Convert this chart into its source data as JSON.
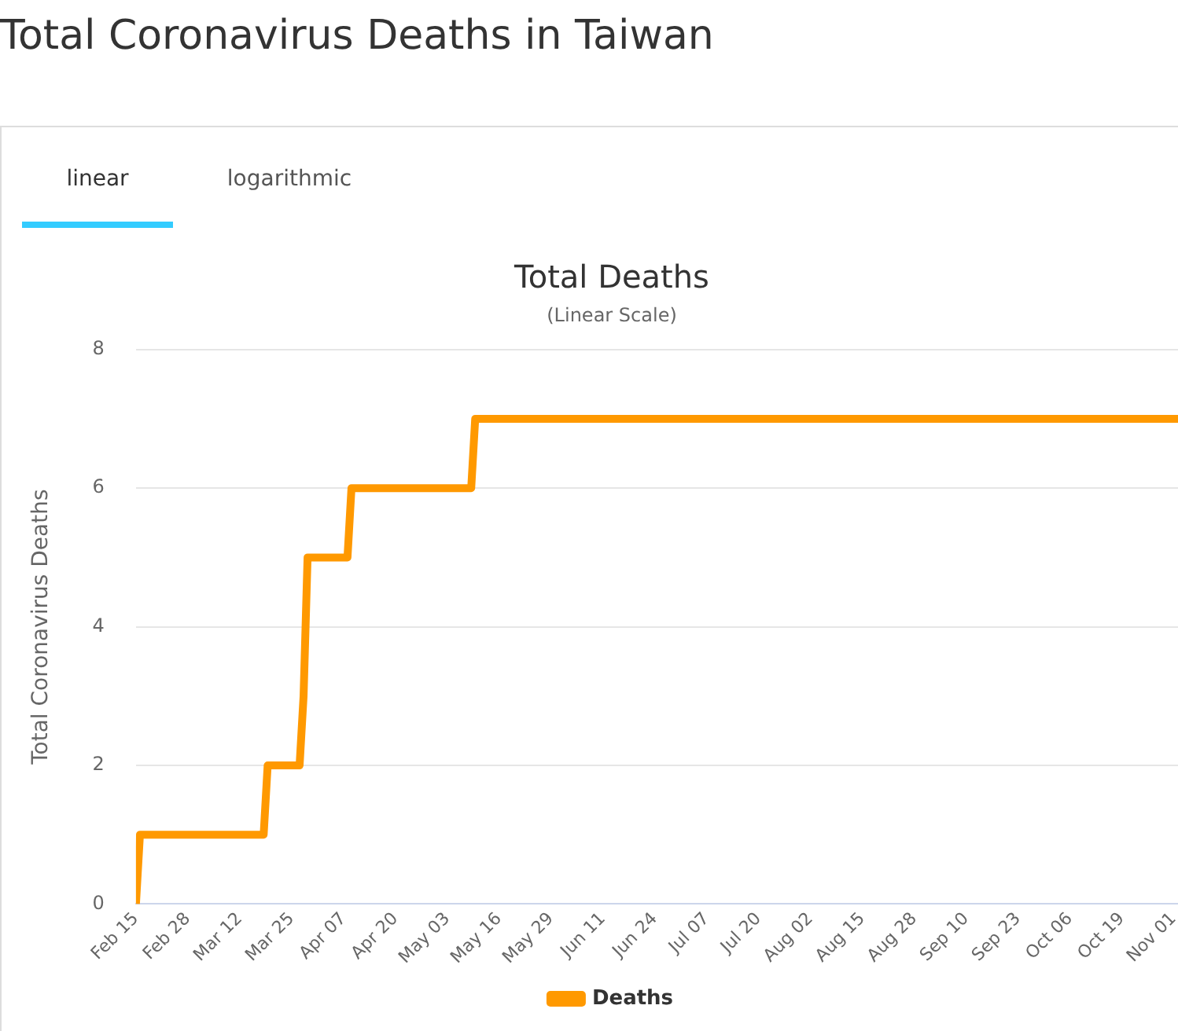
{
  "chart_data": {
    "type": "line",
    "title": "Total Deaths",
    "subtitle": "(Linear Scale)",
    "ylabel": "Total Coronavirus Deaths",
    "annotations": [
      "Total Coronavirus Deaths in Taiwan",
      "linear",
      "logarithmic"
    ],
    "x": [
      "--02-15",
      "--02-16",
      "--03-18",
      "--03-19",
      "--03-27",
      "--03-28",
      "--03-29",
      "--04-08",
      "--04-09",
      "--05-09",
      "--05-10",
      "--11-08"
    ],
    "series": [
      {
        "name": "Deaths",
        "color": "#ff9900",
        "values": [
          0,
          1,
          1,
          2,
          2,
          3,
          5,
          5,
          6,
          6,
          7,
          7
        ]
      }
    ],
    "xlim": [
      "--02-15",
      "--11-08"
    ],
    "xticks": [
      {
        "value": "--02-15",
        "label": "Feb 15"
      },
      {
        "value": "--02-28",
        "label": "Feb 28"
      },
      {
        "value": "--03-12",
        "label": "Mar 12"
      },
      {
        "value": "--03-25",
        "label": "Mar 25"
      },
      {
        "value": "--04-07",
        "label": "Apr 07"
      },
      {
        "value": "--04-20",
        "label": "Apr 20"
      },
      {
        "value": "--05-03",
        "label": "May 03"
      },
      {
        "value": "--05-16",
        "label": "May 16"
      },
      {
        "value": "--05-29",
        "label": "May 29"
      },
      {
        "value": "--06-11",
        "label": "Jun 11"
      },
      {
        "value": "--06-24",
        "label": "Jun 24"
      },
      {
        "value": "--07-07",
        "label": "Jul 07"
      },
      {
        "value": "--07-20",
        "label": "Jul 20"
      },
      {
        "value": "--08-02",
        "label": "Aug 02"
      },
      {
        "value": "--08-15",
        "label": "Aug 15"
      },
      {
        "value": "--08-28",
        "label": "Aug 28"
      },
      {
        "value": "--09-10",
        "label": "Sep 10"
      },
      {
        "value": "--09-23",
        "label": "Sep 23"
      },
      {
        "value": "--10-06",
        "label": "Oct 06"
      },
      {
        "value": "--10-19",
        "label": "Oct 19"
      },
      {
        "value": "--11-01",
        "label": "Nov 01"
      }
    ],
    "ylim": [
      0,
      8
    ],
    "yticks": [
      0,
      2,
      4,
      6,
      8
    ],
    "grid": "y",
    "legend": "bottom",
    "line_style": "solid"
  }
}
